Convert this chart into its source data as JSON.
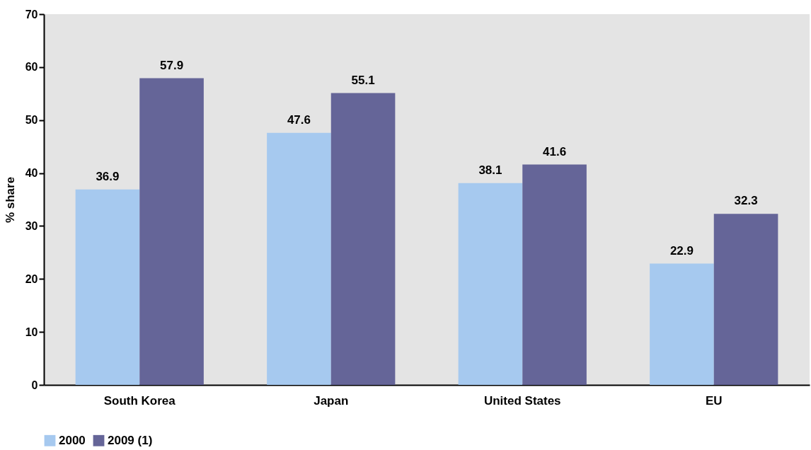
{
  "chart_data": {
    "type": "bar",
    "ylabel": "% share",
    "categories": [
      "South Korea",
      "Japan",
      "United States",
      "EU"
    ],
    "series": [
      {
        "name": "2000",
        "color": "#a6c9ef",
        "values": [
          36.9,
          47.6,
          38.1,
          22.9
        ]
      },
      {
        "name": "2009 (1)",
        "color": "#656598",
        "values": [
          57.9,
          55.1,
          41.6,
          32.3
        ]
      }
    ],
    "ylim": [
      0,
      70
    ],
    "yticks": [
      0,
      10,
      20,
      30,
      40,
      50,
      60,
      70
    ],
    "grid": false,
    "legend": "bottom",
    "data_labels": true
  }
}
